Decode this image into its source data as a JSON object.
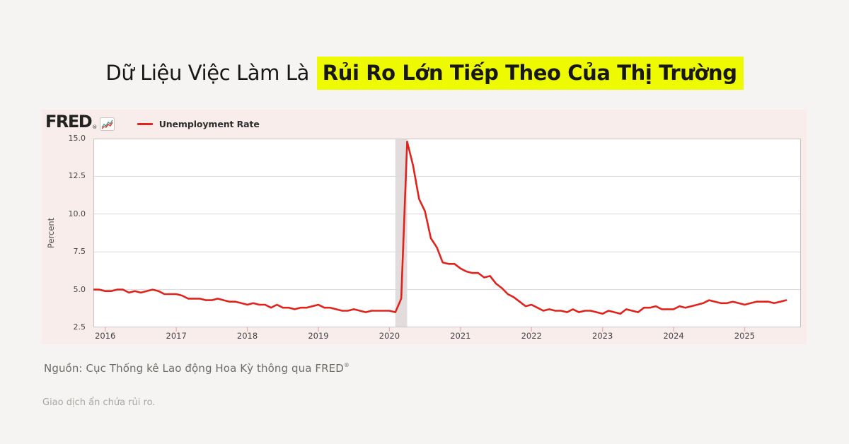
{
  "title": {
    "prefix": "Dữ Liệu Việc Làm Là ",
    "highlight": "Rủi Ro Lớn Tiếp Theo Của Thị Trường",
    "highlight_color": "#eefb00"
  },
  "chart_card": {
    "background": "#f9edeb",
    "logo": "FRED",
    "logo_registered": "®",
    "legend": {
      "label": "Unemployment Rate",
      "swatch_color": "#e0231c"
    }
  },
  "chart_data": {
    "type": "line",
    "title": "Unemployment Rate",
    "ylabel": "Percent",
    "ylim": [
      2.5,
      15.0
    ],
    "y_ticks": [
      "15.0",
      "12.5",
      "10.0",
      "7.5",
      "5.0",
      "2.5"
    ],
    "x_ticks": [
      "2016",
      "2017",
      "2018",
      "2019",
      "2020",
      "2021",
      "2022",
      "2023",
      "2024",
      "2025"
    ],
    "x_start": "2015-11",
    "x_frequency": "monthly",
    "grid": "horizontal",
    "legend_position": "top-left",
    "recession_band": {
      "from": "2020-02",
      "to": "2020-04",
      "color": "#e2dddc"
    },
    "line_color": "#e0231c",
    "series": [
      {
        "name": "Unemployment Rate",
        "values": [
          5.0,
          5.0,
          4.9,
          4.9,
          5.0,
          5.0,
          4.8,
          4.9,
          4.8,
          4.9,
          5.0,
          4.9,
          4.7,
          4.7,
          4.7,
          4.6,
          4.4,
          4.4,
          4.4,
          4.3,
          4.3,
          4.4,
          4.3,
          4.2,
          4.2,
          4.1,
          4.0,
          4.1,
          4.0,
          4.0,
          3.8,
          4.0,
          3.8,
          3.8,
          3.7,
          3.8,
          3.8,
          3.9,
          4.0,
          3.8,
          3.8,
          3.7,
          3.6,
          3.6,
          3.7,
          3.6,
          3.5,
          3.6,
          3.6,
          3.6,
          3.6,
          3.5,
          4.4,
          14.8,
          13.2,
          11.0,
          10.2,
          8.4,
          7.8,
          6.8,
          6.7,
          6.7,
          6.4,
          6.2,
          6.1,
          6.1,
          5.8,
          5.9,
          5.4,
          5.1,
          4.7,
          4.5,
          4.2,
          3.9,
          4.0,
          3.8,
          3.6,
          3.7,
          3.6,
          3.6,
          3.5,
          3.7,
          3.5,
          3.6,
          3.6,
          3.5,
          3.4,
          3.6,
          3.5,
          3.4,
          3.7,
          3.6,
          3.5,
          3.8,
          3.8,
          3.9,
          3.7,
          3.7,
          3.7,
          3.9,
          3.8,
          3.9,
          4.0,
          4.1,
          4.3,
          4.2,
          4.1,
          4.1,
          4.2,
          4.1,
          4.0,
          4.1,
          4.2,
          4.2,
          4.2,
          4.1,
          4.2,
          4.3
        ]
      }
    ]
  },
  "footer": {
    "source": "Nguồn: Cục Thống kê Lao động Hoa Kỳ thông qua FRED",
    "source_registered": "®",
    "disclaimer": "Giao dịch ẩn chứa rủi ro."
  }
}
